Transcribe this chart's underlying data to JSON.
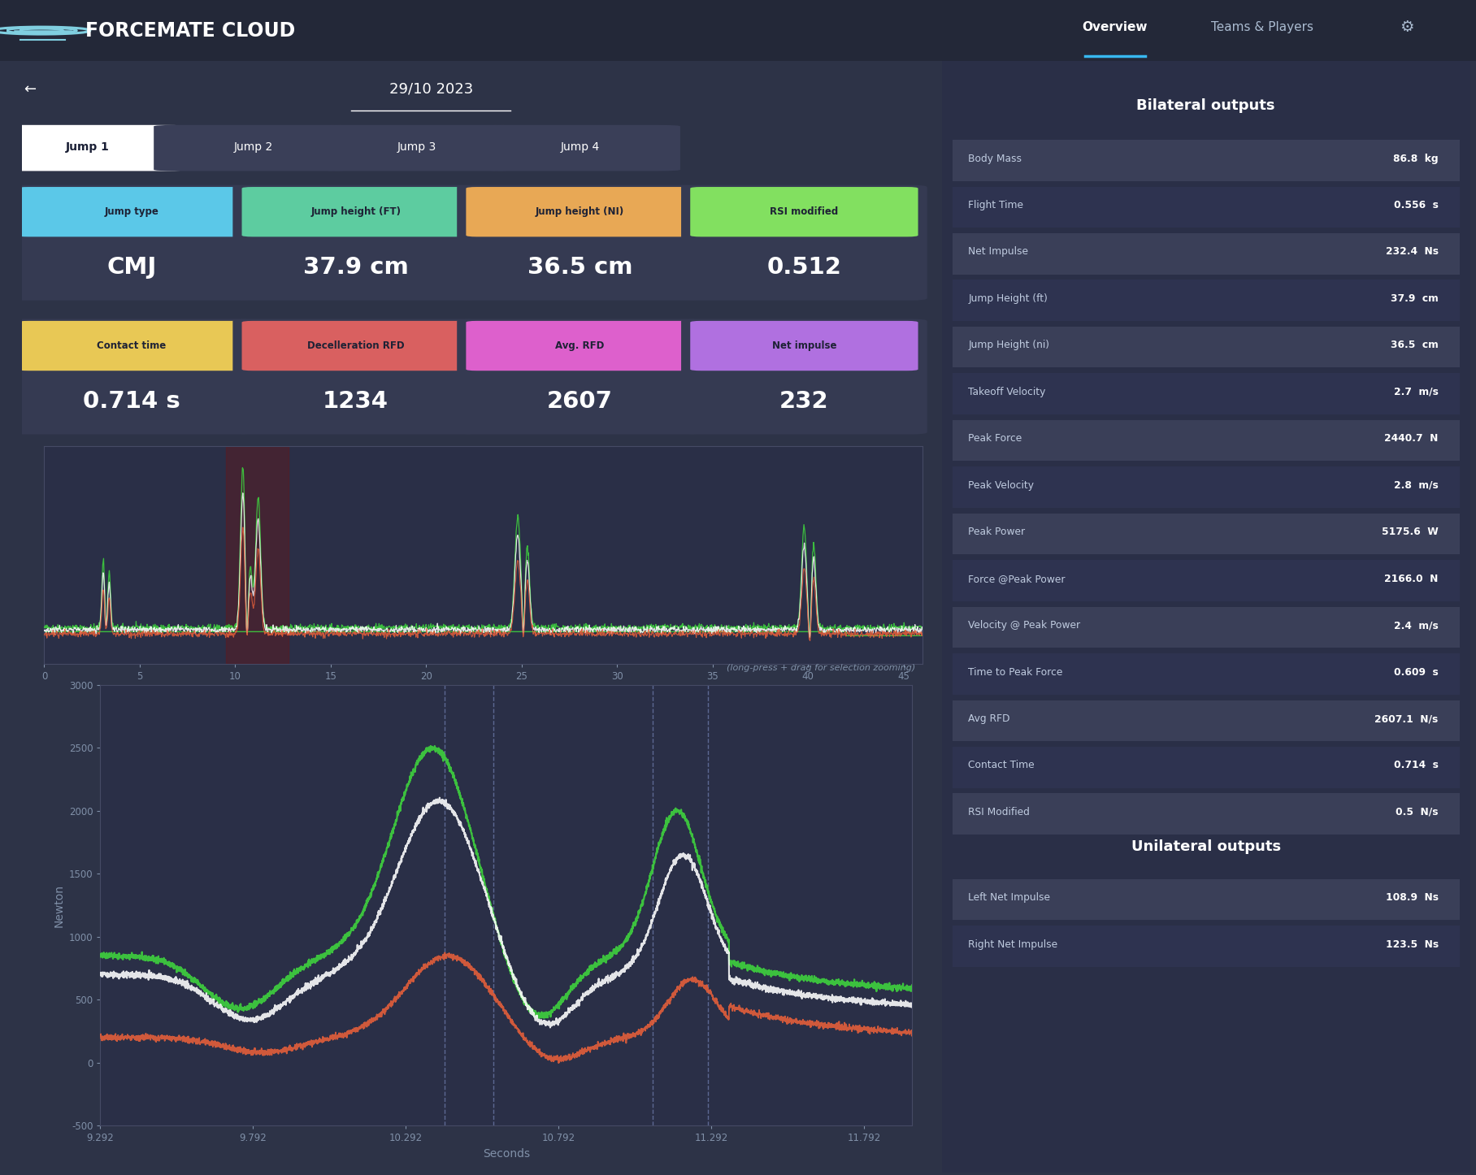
{
  "bg_color": "#2d3347",
  "header_bg": "#232838",
  "panel_bg": "#353a52",
  "card_bg": "#353a52",
  "title": "FORCEMATE CLOUD",
  "date": "29/10 2023",
  "nav_items": [
    "Overview",
    "Teams & Players"
  ],
  "jump_tabs": [
    "Jump 1",
    "Jump 2",
    "Jump 3",
    "Jump 4"
  ],
  "metric_cards": [
    {
      "label": "Jump type",
      "value": "CMJ",
      "label_color": "#5bc8e8"
    },
    {
      "label": "Jump height (FT)",
      "value": "37.9 cm",
      "label_color": "#5dcca0"
    },
    {
      "label": "Jump height (NI)",
      "value": "36.5 cm",
      "label_color": "#e8a855"
    },
    {
      "label": "RSI modified",
      "value": "0.512",
      "label_color": "#82e060"
    },
    {
      "label": "Contact time",
      "value": "0.714 s",
      "label_color": "#e8c855"
    },
    {
      "label": "Decelleration RFD",
      "value": "1234",
      "label_color": "#d96060"
    },
    {
      "label": "Avg. RFD",
      "value": "2607",
      "label_color": "#dd60cc"
    },
    {
      "label": "Net impulse",
      "value": "232",
      "label_color": "#b070e0"
    }
  ],
  "bilateral_title": "Bilateral outputs",
  "bilateral_rows": [
    {
      "label": "Body Mass",
      "value": "86.8",
      "unit": "kg"
    },
    {
      "label": "Flight Time",
      "value": "0.556",
      "unit": "s"
    },
    {
      "label": "Net Impulse",
      "value": "232.4",
      "unit": "Ns"
    },
    {
      "label": "Jump Height (ft)",
      "value": "37.9",
      "unit": "cm"
    },
    {
      "label": "Jump Height (ni)",
      "value": "36.5",
      "unit": "cm"
    },
    {
      "label": "Takeoff Velocity",
      "value": "2.7",
      "unit": "m/s"
    },
    {
      "label": "Peak Force",
      "value": "2440.7",
      "unit": "N"
    },
    {
      "label": "Peak Velocity",
      "value": "2.8",
      "unit": "m/s"
    },
    {
      "label": "Peak Power",
      "value": "5175.6",
      "unit": "W"
    },
    {
      "label": "Force @Peak Power",
      "value": "2166.0",
      "unit": "N"
    },
    {
      "label": "Velocity @ Peak Power",
      "value": "2.4",
      "unit": "m/s"
    },
    {
      "label": "Time to Peak Force",
      "value": "0.609",
      "unit": "s"
    },
    {
      "label": "Avg RFD",
      "value": "2607.1",
      "unit": "N/s"
    },
    {
      "label": "Contact Time",
      "value": "0.714",
      "unit": "s"
    },
    {
      "label": "RSI Modified",
      "value": "0.5",
      "unit": "N/s"
    }
  ],
  "unilateral_title": "Unilateral outputs",
  "unilateral_rows": [
    {
      "label": "Left Net Impulse",
      "value": "108.9",
      "unit": "Ns"
    },
    {
      "label": "Right Net Impulse",
      "value": "123.5",
      "unit": "Ns"
    }
  ],
  "miniplot_hint": "(long-press + drag for selection zooming)",
  "xlabel_bottom": "Seconds",
  "ylabel_bottom": "Newton",
  "bottom_yticks": [
    -500,
    0,
    500,
    1000,
    1500,
    2000,
    2500,
    3000
  ],
  "bottom_xticks": [
    9.292,
    9.792,
    10.292,
    10.792,
    11.292,
    11.792
  ],
  "top_xticks": [
    0,
    5,
    10,
    15,
    20,
    25,
    30,
    35,
    40,
    45
  ],
  "row_odd_bg": "#3a3f58",
  "row_even_bg": "#2e3350",
  "right_panel_bg": "#2a2f47"
}
